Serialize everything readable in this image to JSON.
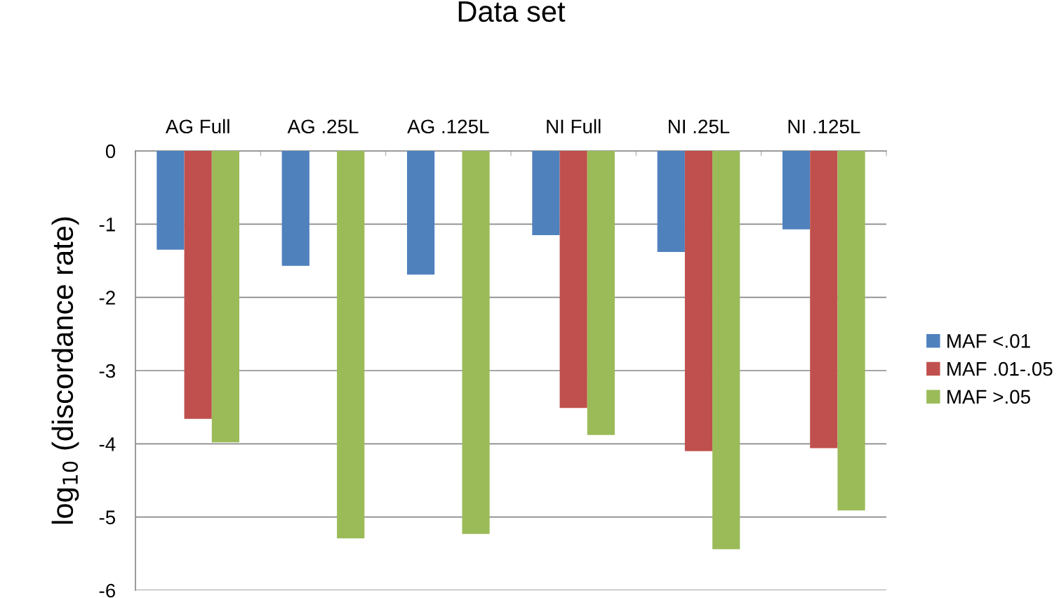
{
  "chart_data": {
    "type": "bar",
    "xlabel": "Data set",
    "ylabel": "log$_{10}$ (discordance rate)",
    "categories": [
      "AG Full",
      "AG .25L",
      "AG .125L",
      "NI Full",
      "NI .25L",
      "NI .125L"
    ],
    "series": [
      {
        "name": "MAF <.01",
        "color": "#4f81bd",
        "values": [
          -1.35,
          -1.57,
          -1.69,
          -1.15,
          -1.38,
          -1.07
        ]
      },
      {
        "name": "MAF .01-.05",
        "color": "#c0504d",
        "values": [
          -3.66,
          null,
          null,
          -3.51,
          -4.1,
          -4.06
        ]
      },
      {
        "name": "MAF >.05",
        "color": "#9bbb59",
        "values": [
          -3.98,
          -5.29,
          -5.23,
          -3.88,
          -5.44,
          -4.91
        ]
      }
    ],
    "ylim": [
      -6,
      0
    ],
    "yticks": [
      -6,
      -5,
      -4,
      -3,
      -2,
      -1,
      0
    ],
    "grid": "y",
    "legend": "right"
  }
}
